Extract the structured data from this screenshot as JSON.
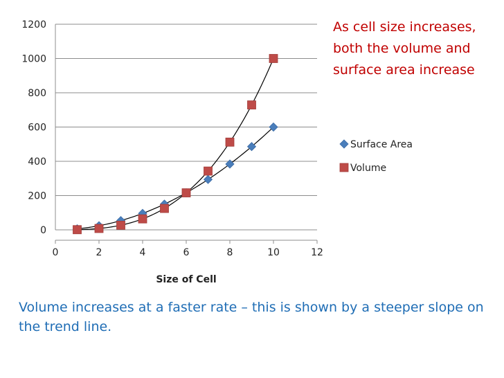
{
  "chart_data": {
    "type": "scatter",
    "title": "",
    "xlabel": "Size of Cell",
    "ylabel": "",
    "xlim": [
      0,
      12
    ],
    "ylim": [
      0,
      1200
    ],
    "x_ticks": [
      0,
      2,
      4,
      6,
      8,
      10,
      12
    ],
    "y_ticks": [
      0,
      200,
      400,
      600,
      800,
      1000,
      1200
    ],
    "grid": "horizontal",
    "legend_position": "right",
    "trendline": "polynomial",
    "series": [
      {
        "name": "Surface Area",
        "marker": "diamond",
        "color": "#4a7ebb",
        "x": [
          1,
          2,
          3,
          4,
          5,
          6,
          7,
          8,
          9,
          10
        ],
        "y": [
          6,
          24,
          54,
          96,
          150,
          216,
          294,
          384,
          486,
          600
        ]
      },
      {
        "name": "Volume",
        "marker": "square",
        "color": "#be4b48",
        "x": [
          1,
          2,
          3,
          4,
          5,
          6,
          7,
          8,
          9,
          10
        ],
        "y": [
          1,
          8,
          27,
          64,
          125,
          216,
          343,
          512,
          729,
          1000
        ]
      }
    ]
  },
  "annotations": {
    "top_right": "As cell size increases, both the volume and surface area increase",
    "bottom": "Volume increases at a faster rate – this is shown by a steeper slope on the trend line."
  },
  "colors": {
    "annotation_top": "#c00000",
    "annotation_bottom": "#1f6db5",
    "gridline": "#8c8c8c"
  }
}
